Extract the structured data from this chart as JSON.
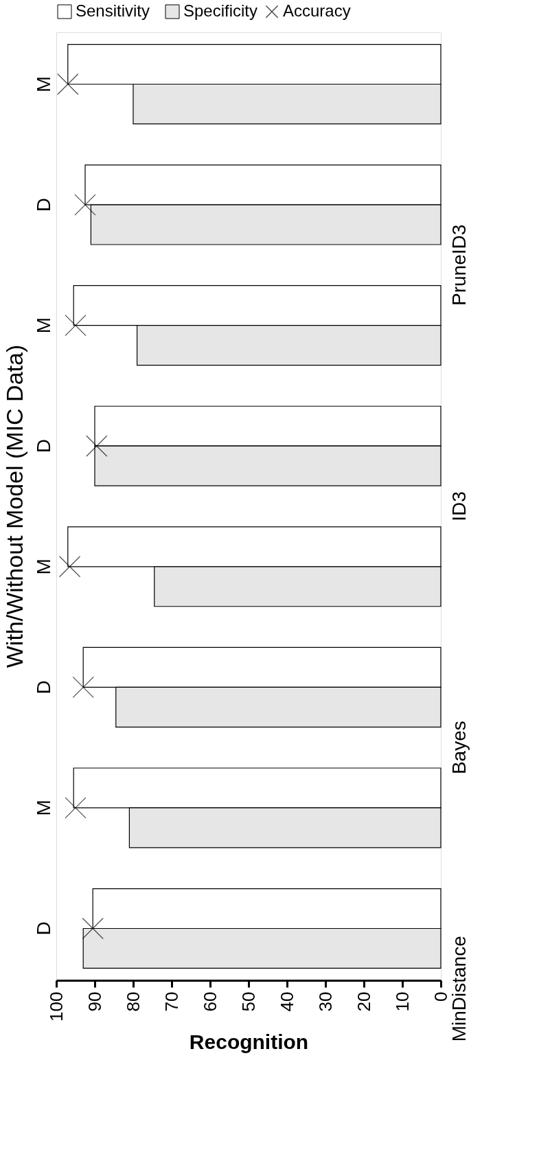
{
  "chart_data": {
    "type": "bar",
    "orientation": "horizontal",
    "title": "With/Without Model (MIC Data)",
    "xlabel": "Recognition",
    "categories": [
      "M",
      "D",
      "M",
      "D",
      "M",
      "D",
      "M",
      "D"
    ],
    "series": [
      {
        "name": "Sensitivity",
        "color": "#ffffff",
        "values": [
          97,
          92.5,
          95.5,
          90,
          97,
          93,
          95.5,
          90.5
        ]
      },
      {
        "name": "Specificity",
        "color": "#e6e6e6",
        "values": [
          80,
          91,
          79,
          90,
          74.5,
          84.5,
          81,
          93
        ]
      },
      {
        "name": "Accuracy",
        "type": "scatter",
        "marker": "cross",
        "color": "#000000",
        "values": [
          97,
          92.5,
          95,
          89.5,
          96.5,
          93,
          95,
          90.5
        ]
      }
    ],
    "annotations": [
      "PruneID3",
      "ID3",
      "Bayes",
      "MinDistance"
    ],
    "xlim": [
      100,
      0
    ],
    "xticks": [
      100,
      90,
      80,
      70,
      60,
      50,
      40,
      30,
      20,
      10,
      0
    ],
    "grid": false,
    "legend": "top"
  }
}
